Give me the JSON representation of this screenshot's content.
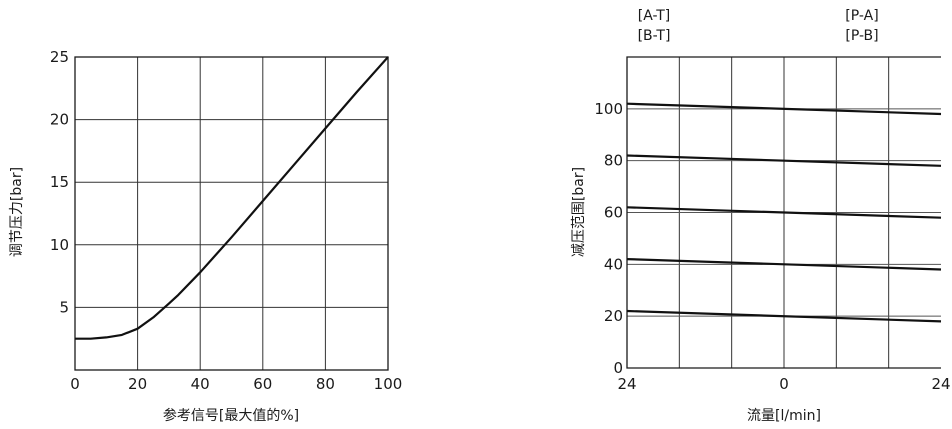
{
  "chart_data": [
    {
      "type": "line",
      "xlabel": "参考信号[最大值的%]",
      "ylabel": "调节压力[bar]",
      "xlim": [
        0,
        100
      ],
      "ylim": [
        0,
        25
      ],
      "x_ticks": [
        "0",
        "20",
        "40",
        "60",
        "80",
        "100"
      ],
      "y_ticks": [
        "5",
        "10",
        "15",
        "20",
        "25"
      ],
      "grid": true,
      "series": [
        {
          "x": [
            0,
            5,
            10,
            15,
            20,
            25,
            30,
            33,
            40,
            50,
            60,
            70,
            80,
            90,
            100
          ],
          "y": [
            2.5,
            2.5,
            2.6,
            2.8,
            3.3,
            4.2,
            5.3,
            6.0,
            7.8,
            10.6,
            13.5,
            16.4,
            19.3,
            22.2,
            25
          ]
        }
      ]
    },
    {
      "type": "line",
      "xlabel": "流量[l/min]",
      "ylabel": "减压范围[bar]",
      "x_ticks": [
        "24",
        "0",
        "24"
      ],
      "xlim": [
        -24,
        24
      ],
      "ylim": [
        0,
        120
      ],
      "y_ticks": [
        "0",
        "20",
        "40",
        "60",
        "80",
        "100"
      ],
      "grid": true,
      "top_labels": {
        "left": [
          "[A-T]",
          "[B-T]"
        ],
        "right": [
          "[P-A]",
          "[P-B]"
        ]
      },
      "series": [
        {
          "x": [
            -24,
            24
          ],
          "y": [
            102,
            98
          ]
        },
        {
          "x": [
            -24,
            24
          ],
          "y": [
            82,
            78
          ]
        },
        {
          "x": [
            -24,
            24
          ],
          "y": [
            62,
            58
          ]
        },
        {
          "x": [
            -24,
            24
          ],
          "y": [
            42,
            38
          ]
        },
        {
          "x": [
            -24,
            24
          ],
          "y": [
            22,
            18
          ]
        }
      ]
    }
  ]
}
